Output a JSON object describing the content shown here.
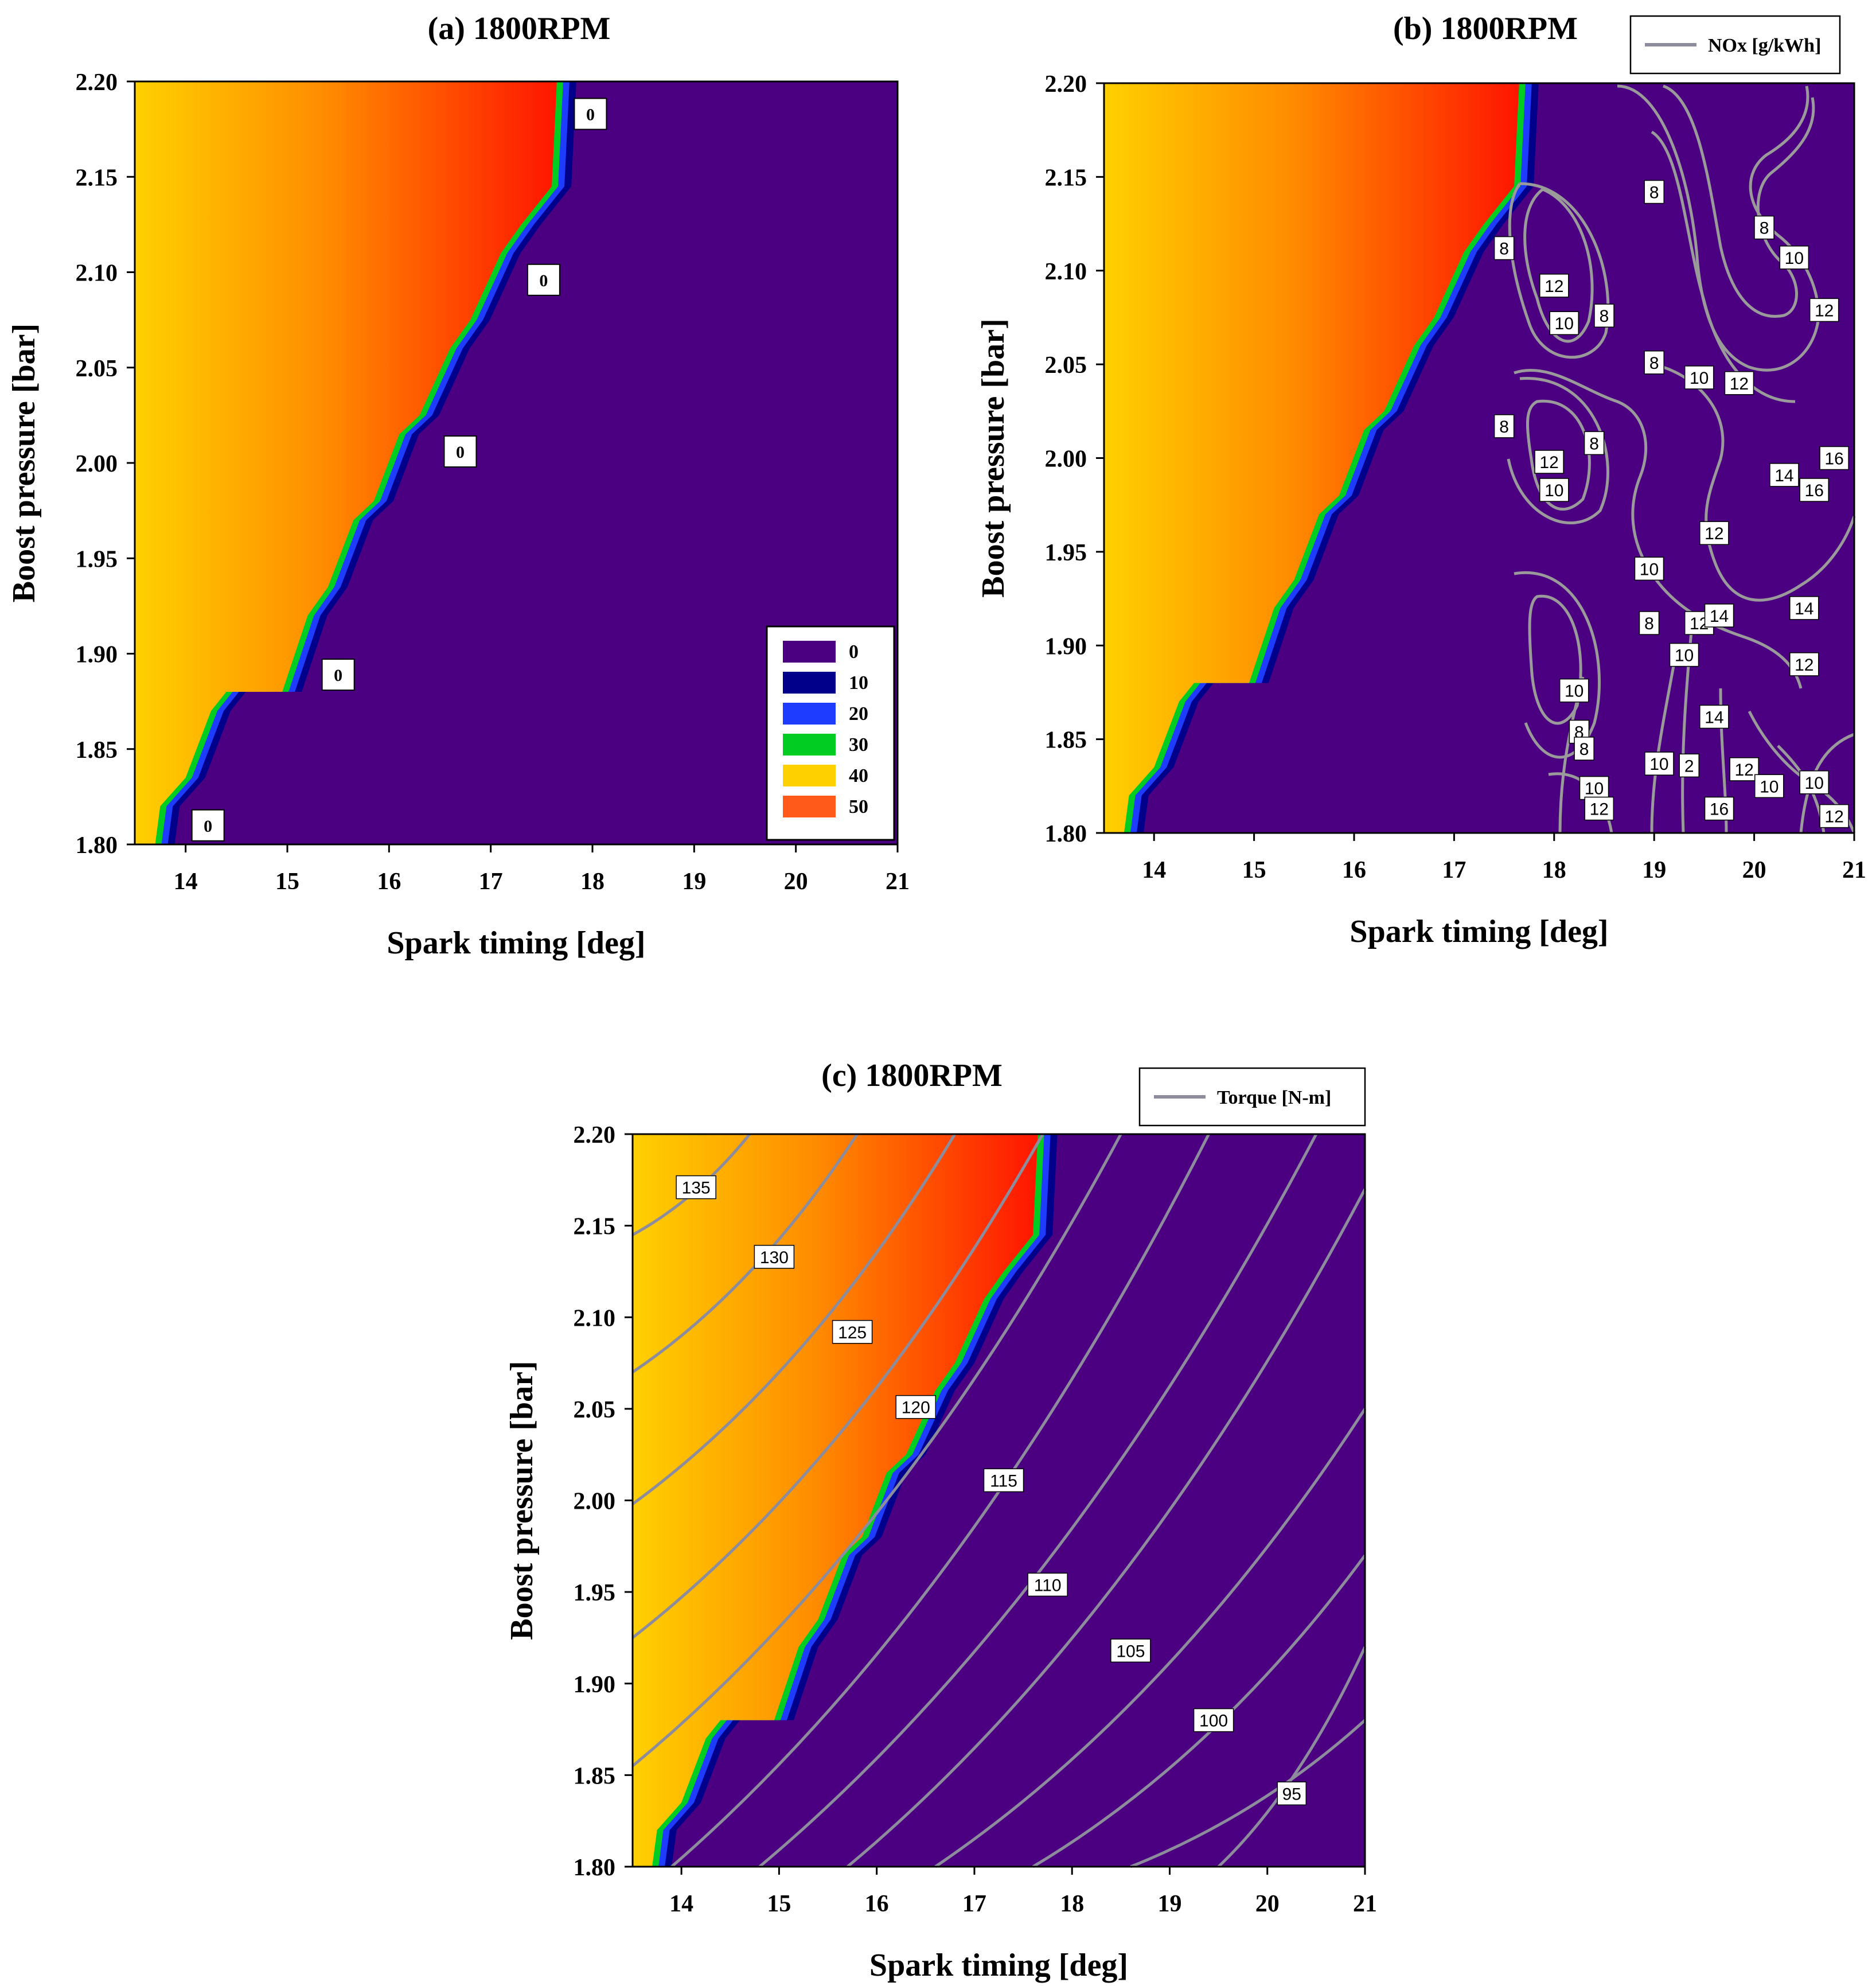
{
  "chart_data": [
    {
      "type": "heatmap",
      "title": "(a) 1800RPM",
      "xlabel": "Spark timing [deg]",
      "ylabel": "Boost pressure [bar]",
      "xlim": [
        13.5,
        21
      ],
      "ylim": [
        1.8,
        2.2
      ],
      "xticks": [
        "14",
        "15",
        "16",
        "17",
        "18",
        "19",
        "20",
        "21"
      ],
      "yticks": [
        "1.80",
        "1.85",
        "1.90",
        "1.95",
        "2.00",
        "2.05",
        "2.10",
        "2.15",
        "2.20"
      ],
      "colorbar": {
        "levels": [
          "0",
          "10",
          "20",
          "30",
          "40",
          "50"
        ],
        "colors": [
          "#4b0082",
          "#00008b",
          "#1e3cff",
          "#00cc22",
          "#ffd000",
          "#ff5a1a"
        ],
        "placement": "bottom-right"
      },
      "boundary": [
        {
          "x": 13.7,
          "y": 1.8
        },
        {
          "x": 13.75,
          "y": 1.82
        },
        {
          "x": 14.0,
          "y": 1.835
        },
        {
          "x": 14.25,
          "y": 1.87
        },
        {
          "x": 14.4,
          "y": 1.88
        },
        {
          "x": 14.95,
          "y": 1.88
        },
        {
          "x": 15.2,
          "y": 1.92
        },
        {
          "x": 15.4,
          "y": 1.935
        },
        {
          "x": 15.65,
          "y": 1.97
        },
        {
          "x": 15.85,
          "y": 1.98
        },
        {
          "x": 16.1,
          "y": 2.015
        },
        {
          "x": 16.3,
          "y": 2.025
        },
        {
          "x": 16.6,
          "y": 2.06
        },
        {
          "x": 16.8,
          "y": 2.075
        },
        {
          "x": 17.1,
          "y": 2.11
        },
        {
          "x": 17.3,
          "y": 2.125
        },
        {
          "x": 17.6,
          "y": 2.145
        },
        {
          "x": 17.65,
          "y": 2.2
        }
      ],
      "zero_labels": [
        {
          "text": "0",
          "x": 17.98,
          "y": 2.183
        },
        {
          "text": "0",
          "x": 17.52,
          "y": 2.096
        },
        {
          "text": "0",
          "x": 16.7,
          "y": 2.006
        },
        {
          "text": "0",
          "x": 15.5,
          "y": 1.889
        },
        {
          "text": "0",
          "x": 14.22,
          "y": 1.81
        }
      ]
    },
    {
      "type": "heatmap",
      "title": "(b) 1800RPM",
      "xlabel": "Spark timing [deg]",
      "ylabel": "Boost pressure [bar]",
      "xlim": [
        13.5,
        21
      ],
      "ylim": [
        1.8,
        2.2
      ],
      "xticks": [
        "14",
        "15",
        "16",
        "17",
        "18",
        "19",
        "20",
        "21"
      ],
      "yticks": [
        "1.80",
        "1.85",
        "1.90",
        "1.95",
        "2.00",
        "2.05",
        "2.10",
        "2.15",
        "2.20"
      ],
      "legend": {
        "label": "NOx [g/kWh]",
        "placement": "top-right"
      },
      "contour_labels": [
        {
          "text": "8",
          "x": 17.5,
          "y": 2.112
        },
        {
          "text": "12",
          "x": 18.0,
          "y": 2.092
        },
        {
          "text": "10",
          "x": 18.1,
          "y": 2.072
        },
        {
          "text": "8",
          "x": 18.5,
          "y": 2.076
        },
        {
          "text": "8",
          "x": 19.0,
          "y": 2.142
        },
        {
          "text": "8",
          "x": 20.1,
          "y": 2.123
        },
        {
          "text": "10",
          "x": 20.4,
          "y": 2.107
        },
        {
          "text": "12",
          "x": 20.7,
          "y": 2.079
        },
        {
          "text": "8",
          "x": 19.0,
          "y": 2.051
        },
        {
          "text": "10",
          "x": 19.45,
          "y": 2.043
        },
        {
          "text": "12",
          "x": 19.85,
          "y": 2.04
        },
        {
          "text": "8",
          "x": 17.5,
          "y": 2.017
        },
        {
          "text": "8",
          "x": 18.4,
          "y": 2.008
        },
        {
          "text": "12",
          "x": 17.95,
          "y": 1.998
        },
        {
          "text": "10",
          "x": 18.0,
          "y": 1.983
        },
        {
          "text": "16",
          "x": 20.8,
          "y": 2.0
        },
        {
          "text": "14",
          "x": 20.3,
          "y": 1.991
        },
        {
          "text": "16",
          "x": 20.6,
          "y": 1.983
        },
        {
          "text": "12",
          "x": 19.6,
          "y": 1.96
        },
        {
          "text": "10",
          "x": 18.95,
          "y": 1.941
        },
        {
          "text": "8",
          "x": 18.95,
          "y": 1.912
        },
        {
          "text": "12",
          "x": 19.45,
          "y": 1.912
        },
        {
          "text": "14",
          "x": 19.65,
          "y": 1.916
        },
        {
          "text": "14",
          "x": 20.5,
          "y": 1.92
        },
        {
          "text": "10",
          "x": 19.3,
          "y": 1.895
        },
        {
          "text": "12",
          "x": 20.5,
          "y": 1.89
        },
        {
          "text": "10",
          "x": 18.2,
          "y": 1.876
        },
        {
          "text": "14",
          "x": 19.6,
          "y": 1.862
        },
        {
          "text": "8",
          "x": 18.25,
          "y": 1.854
        },
        {
          "text": "8",
          "x": 18.3,
          "y": 1.845
        },
        {
          "text": "10",
          "x": 19.05,
          "y": 1.837
        },
        {
          "text": "2",
          "x": 19.35,
          "y": 1.836
        },
        {
          "text": "12",
          "x": 19.9,
          "y": 1.834
        },
        {
          "text": "10",
          "x": 20.15,
          "y": 1.825
        },
        {
          "text": "10",
          "x": 20.6,
          "y": 1.827
        },
        {
          "text": "10",
          "x": 18.4,
          "y": 1.824
        },
        {
          "text": "12",
          "x": 18.45,
          "y": 1.813
        },
        {
          "text": "16",
          "x": 19.65,
          "y": 1.813
        },
        {
          "text": "12",
          "x": 20.8,
          "y": 1.809
        }
      ]
    },
    {
      "type": "heatmap",
      "title": "(c) 1800RPM",
      "xlabel": "Spark timing [deg]",
      "ylabel": "Boost pressure [bar]",
      "xlim": [
        13.5,
        21
      ],
      "ylim": [
        1.8,
        2.2
      ],
      "xticks": [
        "14",
        "15",
        "16",
        "17",
        "18",
        "19",
        "20",
        "21"
      ],
      "yticks": [
        "1.80",
        "1.85",
        "1.90",
        "1.95",
        "2.00",
        "2.05",
        "2.10",
        "2.15",
        "2.20"
      ],
      "legend": {
        "label": "Torque [N-m]",
        "placement": "top-right"
      },
      "contour_labels": [
        {
          "text": "135",
          "x": 14.15,
          "y": 2.171
        },
        {
          "text": "130",
          "x": 14.95,
          "y": 2.133
        },
        {
          "text": "125",
          "x": 15.75,
          "y": 2.092
        },
        {
          "text": "120",
          "x": 16.4,
          "y": 2.051
        },
        {
          "text": "115",
          "x": 17.3,
          "y": 2.011
        },
        {
          "text": "110",
          "x": 17.75,
          "y": 1.954
        },
        {
          "text": "105",
          "x": 18.6,
          "y": 1.918
        },
        {
          "text": "100",
          "x": 19.45,
          "y": 1.88
        },
        {
          "text": "95",
          "x": 20.25,
          "y": 1.84
        }
      ]
    }
  ]
}
